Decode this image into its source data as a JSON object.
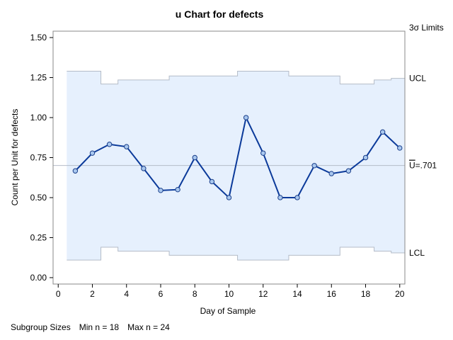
{
  "chart_data": {
    "type": "line",
    "title": "u Chart for defects",
    "xlabel": "Day of Sample",
    "ylabel": "Count per Unit for defects",
    "xlim": [
      -0.3,
      20.3
    ],
    "ylim": [
      -0.04,
      1.54
    ],
    "x_ticks": [
      0,
      2,
      4,
      6,
      8,
      10,
      12,
      14,
      16,
      18,
      20
    ],
    "y_ticks": [
      0.0,
      0.25,
      0.5,
      0.75,
      1.0,
      1.25,
      1.5
    ],
    "y_tick_labels": [
      "0.00",
      "0.25",
      "0.50",
      "0.75",
      "1.00",
      "1.25",
      "1.50"
    ],
    "x": [
      1,
      2,
      3,
      4,
      5,
      6,
      7,
      8,
      9,
      10,
      11,
      12,
      13,
      14,
      15,
      16,
      17,
      18,
      19,
      20
    ],
    "values": [
      0.667,
      0.778,
      0.833,
      0.818,
      0.682,
      0.545,
      0.55,
      0.75,
      0.6,
      0.5,
      1.0,
      0.778,
      0.5,
      0.5,
      0.7,
      0.65,
      0.667,
      0.75,
      0.91,
      0.81
    ],
    "ucl": [
      1.29,
      1.29,
      1.21,
      1.235,
      1.235,
      1.235,
      1.26,
      1.26,
      1.26,
      1.26,
      1.29,
      1.29,
      1.29,
      1.26,
      1.26,
      1.26,
      1.21,
      1.21,
      1.235,
      1.245
    ],
    "lcl": [
      0.11,
      0.11,
      0.19,
      0.165,
      0.165,
      0.165,
      0.14,
      0.14,
      0.14,
      0.14,
      0.11,
      0.11,
      0.11,
      0.14,
      0.14,
      0.14,
      0.19,
      0.19,
      0.165,
      0.155
    ],
    "center": 0.701,
    "limits_header": "3σ Limits",
    "ucl_label": "UCL",
    "lcl_label": "LCL",
    "center_label_prefix": "U",
    "center_label_value": "=.701",
    "colors": {
      "band_fill": "#e6f0fd",
      "band_stroke": "#b4bcc8",
      "center_line": "#b4bcc8",
      "series_line": "#0b3a9a",
      "marker_fill": "#a9c8ef",
      "marker_stroke": "#1b3f8a",
      "frame": "#8a8a8a"
    }
  },
  "footer": {
    "label": "Subgroup Sizes",
    "min": "Min n = 18",
    "max": "Max n = 24"
  }
}
